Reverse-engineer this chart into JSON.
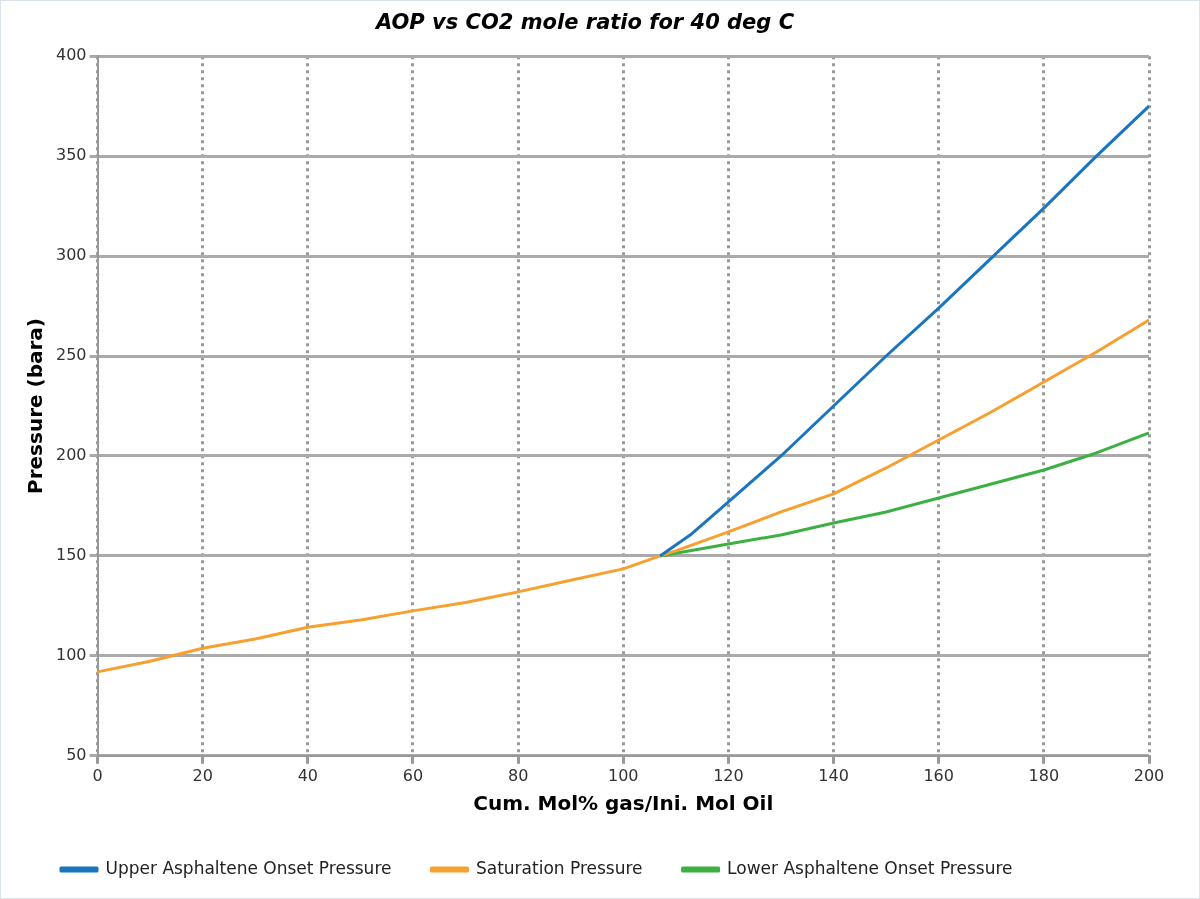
{
  "chart_data": {
    "type": "line",
    "title": "AOP vs CO2 mole ratio for 40 deg C",
    "xlabel": "Cum. Mol% gas/Ini. Mol Oil",
    "ylabel": "Pressure (bara)",
    "xlim": [
      0,
      200
    ],
    "xticks": [
      0,
      20,
      40,
      60,
      80,
      100,
      120,
      140,
      160,
      180,
      200
    ],
    "ylim": [
      50,
      400
    ],
    "yticks": [
      50,
      100,
      150,
      200,
      250,
      300,
      350,
      400
    ],
    "grid": true,
    "legend": "bottom",
    "marker": "none",
    "line_style": "solid",
    "series": [
      {
        "name": "Upper Asphaltene Onset Pressure",
        "color": "#1a75c0",
        "x": [
          107,
          113,
          120,
          130,
          140,
          150,
          160,
          170,
          180,
          190,
          200
        ],
        "values": [
          150,
          161,
          177,
          200,
          225,
          250,
          274,
          299,
          324,
          350,
          375
        ]
      },
      {
        "name": "Saturation Pressure",
        "color": "#f7a030",
        "x": [
          0,
          10,
          20,
          30,
          40,
          50,
          60,
          70,
          80,
          90,
          100,
          107,
          110,
          120,
          130,
          140,
          150,
          160,
          170,
          180,
          190,
          200
        ],
        "values": [
          92,
          97.3,
          103.8,
          108.4,
          114.3,
          117.9,
          122.5,
          126.7,
          132,
          137.8,
          143.5,
          150,
          152.5,
          162,
          172,
          181,
          194,
          208,
          222,
          237,
          252,
          268
        ]
      },
      {
        "name": "Lower Asphaltene Onset Pressure",
        "color": "#3cb043",
        "x": [
          107,
          120,
          130,
          140,
          150,
          160,
          170,
          180,
          190,
          200
        ],
        "values": [
          150,
          156,
          160.5,
          166.5,
          172,
          179,
          186,
          193,
          201.5,
          211.6
        ]
      }
    ]
  }
}
